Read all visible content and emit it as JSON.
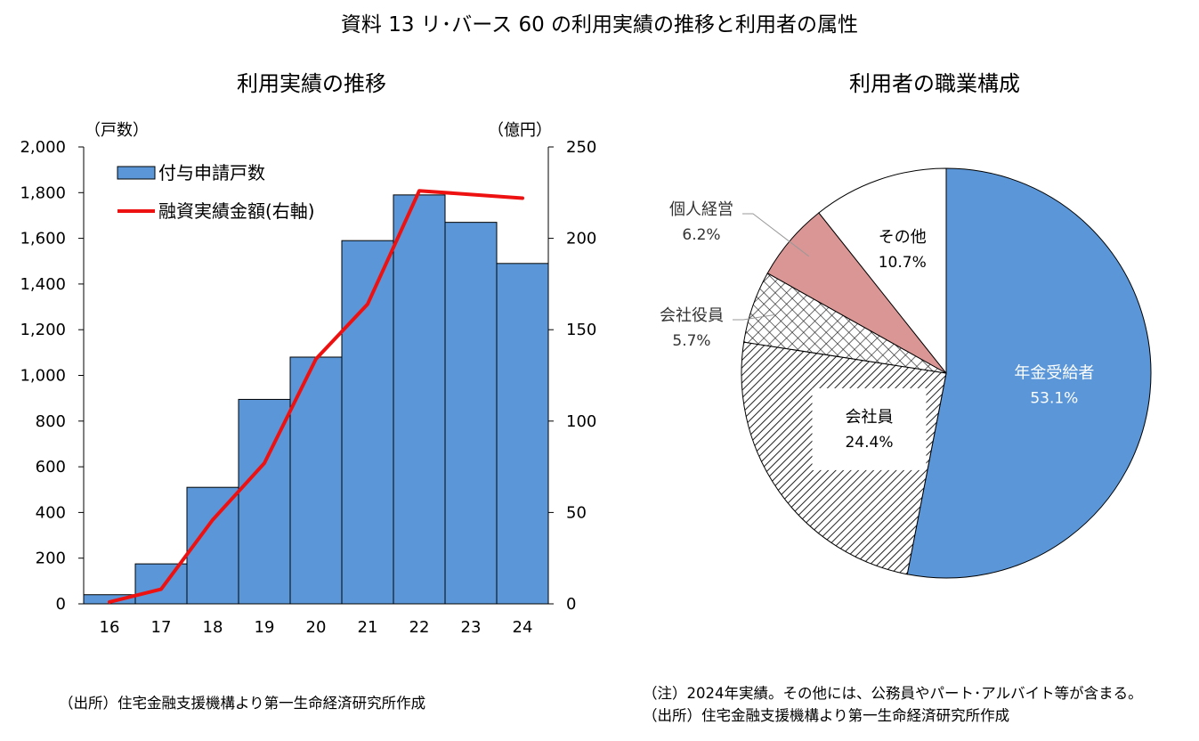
{
  "title": "資料 13 リ･バース 60 の利用実績の推移と利用者の属性",
  "chart_data": [
    {
      "type": "bar",
      "title": "利用実績の推移",
      "categories": [
        "16",
        "17",
        "18",
        "19",
        "20",
        "21",
        "22",
        "23",
        "24"
      ],
      "ylabel_left": "（戸数）",
      "ylabel_right": "（億円）",
      "ylim_left": [
        0,
        2000
      ],
      "ylim_right": [
        0,
        250
      ],
      "yticks_left": [
        "0",
        "200",
        "400",
        "600",
        "800",
        "1,000",
        "1,200",
        "1,400",
        "1,600",
        "1,800",
        "2,000"
      ],
      "yticks_right": [
        "0",
        "50",
        "100",
        "150",
        "200",
        "250"
      ],
      "grid": false,
      "legend_position": "top-left",
      "series": [
        {
          "name": "付与申請戸数",
          "kind": "bar",
          "axis": "left",
          "color": "#5b97d8",
          "values": [
            40,
            175,
            510,
            895,
            1080,
            1590,
            1790,
            1670,
            1490
          ]
        },
        {
          "name": "融資実績金額(右軸)",
          "kind": "line",
          "axis": "right",
          "color": "#ee1111",
          "values": [
            1,
            8,
            46,
            77,
            134,
            164,
            226,
            224,
            222
          ]
        }
      ]
    },
    {
      "type": "pie",
      "title": "利用者の職業構成",
      "slices": [
        {
          "label": "年金受給者",
          "value": 53.1,
          "display": "53.1%",
          "fill": "#5b97d8",
          "pattern": "solid"
        },
        {
          "label": "会社員",
          "value": 24.4,
          "display": "24.4%",
          "fill": "#ffffff",
          "pattern": "diagonal-hatch"
        },
        {
          "label": "会社役員",
          "value": 5.7,
          "display": "5.7%",
          "fill": "#ffffff",
          "pattern": "crosshatch"
        },
        {
          "label": "個人経営",
          "value": 6.2,
          "display": "6.2%",
          "fill": "#d99694",
          "pattern": "solid"
        },
        {
          "label": "その他",
          "value": 10.7,
          "display": "10.7%",
          "fill": "#ffffff",
          "pattern": "solid"
        }
      ]
    }
  ],
  "notes": {
    "source_left": "（出所）住宅金融支援機構より第一生命経済研究所作成",
    "note_right": "（注）2024年実績。その他には、公務員やパート･アルバイト等が含まる。",
    "source_right": "（出所）住宅金融支援機構より第一生命経済研究所作成"
  }
}
